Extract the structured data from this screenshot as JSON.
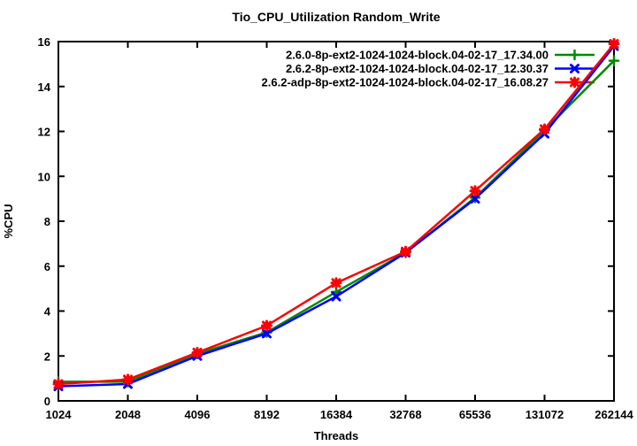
{
  "page": {
    "background": "#ffffff",
    "text_color": "#000000"
  },
  "chart_data": {
    "type": "line",
    "title": "Tio_CPU_Utilization Random_Write",
    "xlabel": "Threads",
    "ylabel": "%CPU",
    "x_scale": "log2",
    "categories": [
      "1024",
      "2048",
      "4096",
      "8192",
      "16384",
      "32768",
      "65536",
      "131072",
      "262144"
    ],
    "yticks": [
      "0",
      "2",
      "4",
      "6",
      "8",
      "10",
      "12",
      "14",
      "16"
    ],
    "ylim": [
      0,
      16
    ],
    "grid": false,
    "legend_position": "top-right-inside",
    "axis_color": "#000000",
    "series": [
      {
        "name": "2.6.0-8p-ext2-1024-1024-block.04-02-17_17.34.00",
        "color": "#008b00",
        "marker": "plus",
        "values": [
          0.85,
          0.85,
          2.1,
          3.05,
          4.85,
          6.6,
          9.05,
          12.05,
          15.15
        ]
      },
      {
        "name": "2.6.2-8p-ext2-1024-1024-block.04-02-17_12.30.37",
        "color": "#0000ff",
        "marker": "cross",
        "values": [
          0.65,
          0.75,
          2.0,
          3.0,
          4.65,
          6.6,
          9.0,
          11.9,
          15.8
        ]
      },
      {
        "name": "2.6.2-adp-8p-ext2-1024-1024-block.04-02-17_16.08.27",
        "color": "#ff0000",
        "marker": "star",
        "values": [
          0.75,
          0.95,
          2.15,
          3.35,
          5.25,
          6.65,
          9.35,
          12.1,
          15.9
        ]
      }
    ]
  }
}
